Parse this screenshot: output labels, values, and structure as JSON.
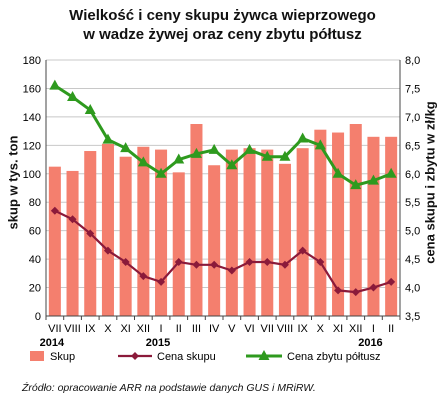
{
  "chart_data": {
    "type": "bar",
    "title_line1": "Wielkość i ceny skupu żywca wieprzowego",
    "title_line2": "w wadze żywej oraz ceny zbytu półtusz",
    "ylabel_left": "skup w tys. ton",
    "ylabel_right": "cena skupu i zbytu w zł/kg",
    "ylim_left": [
      0,
      180
    ],
    "ylim_right": [
      3.5,
      8.0
    ],
    "yticks_left": [
      "0",
      "20",
      "40",
      "60",
      "80",
      "100",
      "120",
      "140",
      "160",
      "180"
    ],
    "yticks_right": [
      "3,5",
      "4,0",
      "4,5",
      "5,0",
      "5,5",
      "6,0",
      "6,5",
      "7,0",
      "7,5",
      "8,0"
    ],
    "categories": [
      "VII",
      "VIII",
      "IX",
      "X",
      "XI",
      "XII",
      "I",
      "II",
      "III",
      "IV",
      "V",
      "VI",
      "VII",
      "VIII",
      "IX",
      "X",
      "XI",
      "XII",
      "I",
      "II"
    ],
    "year_labels": [
      {
        "index": 0,
        "text": "2014"
      },
      {
        "index": 6,
        "text": "2015"
      },
      {
        "index": 18,
        "text": "2016"
      }
    ],
    "series": [
      {
        "name": "Skup",
        "kind": "bar",
        "axis": "left",
        "color": "#f47f6e",
        "values": [
          105,
          102,
          116,
          121,
          112,
          119,
          117,
          101,
          135,
          106,
          117,
          118,
          117,
          107,
          118,
          131,
          129,
          135,
          126,
          126
        ]
      },
      {
        "name": "Cena skupu",
        "kind": "line",
        "axis": "right",
        "color": "#8b1a3a",
        "values": [
          5.35,
          5.2,
          4.95,
          4.65,
          4.45,
          4.2,
          4.1,
          4.45,
          4.4,
          4.4,
          4.3,
          4.45,
          4.45,
          4.4,
          4.65,
          4.45,
          3.95,
          3.92,
          4.0,
          4.1
        ]
      },
      {
        "name": "Cena zbytu półtusz",
        "kind": "line",
        "axis": "right",
        "color": "#2e9a1e",
        "values": [
          7.55,
          7.35,
          7.12,
          6.6,
          6.45,
          6.2,
          6.0,
          6.25,
          6.35,
          6.42,
          6.15,
          6.42,
          6.3,
          6.3,
          6.62,
          6.5,
          6.0,
          5.8,
          5.88,
          6.0
        ]
      }
    ],
    "legend_position": "bottom",
    "grid": "horizontal"
  },
  "source_text": "Źródło: opracowanie ARR na podstawie danych GUS i MRiRW."
}
